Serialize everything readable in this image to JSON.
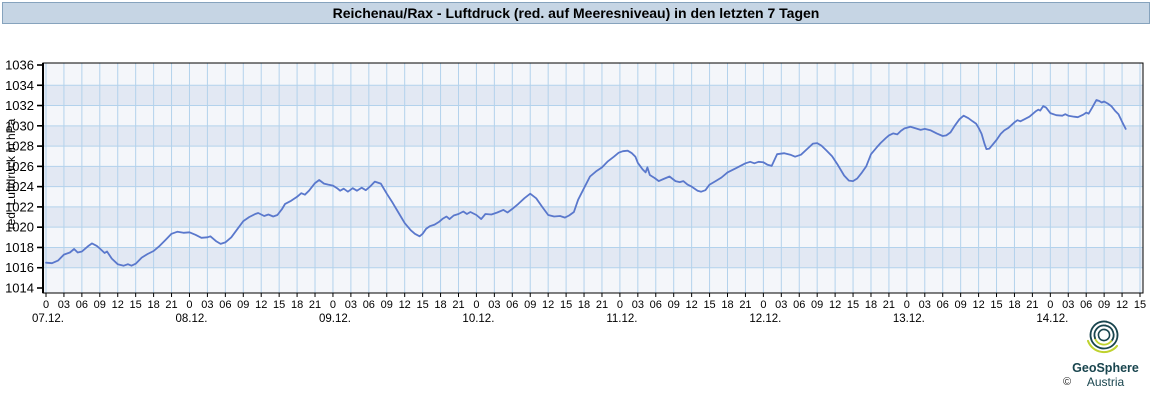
{
  "title_bar": {
    "text": "Reichenau/Rax - Luftdruck (red. auf Meeresniveau) in den letzten 7 Tagen",
    "bg": "#c6d5e4",
    "border": "#86a3bd"
  },
  "chart": {
    "y_axis_label": "red. Luftdruck in hPa",
    "y_ticks": [
      "1014",
      "1016",
      "1018",
      "1020",
      "1022",
      "1024",
      "1026",
      "1028",
      "1030",
      "1032",
      "1034",
      "1036"
    ],
    "hour_label_cycle": [
      "0",
      "03",
      "06",
      "09",
      "12",
      "15",
      "18",
      "21"
    ],
    "date_labels": [
      "07.12.",
      "08.12.",
      "09.12.",
      "10.12.",
      "11.12.",
      "12.12.",
      "13.12.",
      "14.12."
    ],
    "tick_step_hours": 3,
    "colors": {
      "band_light": "#f4f6fa",
      "band_blue": "#e2e8f3",
      "grid": "#b3d2ec",
      "frame": "#000000",
      "line": "#5a78cc",
      "tick_text": "#000000"
    }
  },
  "chart_data": {
    "type": "line",
    "title": "Reichenau/Rax - Luftdruck (red. auf Meeresniveau) in den letzten 7 Tagen",
    "xlabel": "",
    "ylabel": "red. Luftdruck in hPa",
    "x_unit": "hours since 07.12. 00:00",
    "xlim": [
      0,
      183
    ],
    "ylim": [
      1014,
      1036
    ],
    "grid": true,
    "legend": false,
    "series": [
      {
        "name": "red. Luftdruck (hPa)",
        "points": [
          [
            0,
            1016.5
          ],
          [
            1,
            1016.45
          ],
          [
            2,
            1016.7
          ],
          [
            3,
            1017.3
          ],
          [
            4,
            1017.5
          ],
          [
            4.7,
            1017.85
          ],
          [
            5.3,
            1017.5
          ],
          [
            6,
            1017.6
          ],
          [
            7,
            1018.1
          ],
          [
            7.7,
            1018.4
          ],
          [
            8.5,
            1018.15
          ],
          [
            9,
            1017.9
          ],
          [
            9.8,
            1017.45
          ],
          [
            10.2,
            1017.6
          ],
          [
            11,
            1016.9
          ],
          [
            12,
            1016.35
          ],
          [
            13,
            1016.2
          ],
          [
            13.7,
            1016.35
          ],
          [
            14.3,
            1016.2
          ],
          [
            15,
            1016.4
          ],
          [
            16,
            1017
          ],
          [
            17,
            1017.35
          ],
          [
            18,
            1017.65
          ],
          [
            19,
            1018.15
          ],
          [
            20,
            1018.75
          ],
          [
            21,
            1019.35
          ],
          [
            22,
            1019.55
          ],
          [
            23,
            1019.45
          ],
          [
            24,
            1019.5
          ],
          [
            25,
            1019.25
          ],
          [
            26,
            1018.95
          ],
          [
            27,
            1019
          ],
          [
            27.5,
            1019.1
          ],
          [
            28.5,
            1018.6
          ],
          [
            29.2,
            1018.35
          ],
          [
            30,
            1018.5
          ],
          [
            31,
            1019
          ],
          [
            32,
            1019.8
          ],
          [
            33,
            1020.6
          ],
          [
            34,
            1021
          ],
          [
            35,
            1021.3
          ],
          [
            35.5,
            1021.4
          ],
          [
            36.5,
            1021.1
          ],
          [
            37.2,
            1021.25
          ],
          [
            38,
            1021.05
          ],
          [
            38.7,
            1021.2
          ],
          [
            39.5,
            1021.8
          ],
          [
            40,
            1022.3
          ],
          [
            41,
            1022.6
          ],
          [
            42,
            1023
          ],
          [
            42.7,
            1023.35
          ],
          [
            43.3,
            1023.2
          ],
          [
            44,
            1023.6
          ],
          [
            45,
            1024.35
          ],
          [
            45.7,
            1024.65
          ],
          [
            46.5,
            1024.3
          ],
          [
            47.2,
            1024.2
          ],
          [
            48,
            1024.1
          ],
          [
            48.7,
            1023.85
          ],
          [
            49.2,
            1023.6
          ],
          [
            49.8,
            1023.8
          ],
          [
            50.5,
            1023.5
          ],
          [
            51.3,
            1023.85
          ],
          [
            52,
            1023.6
          ],
          [
            52.8,
            1023.9
          ],
          [
            53.5,
            1023.65
          ],
          [
            54.2,
            1024
          ],
          [
            55,
            1024.5
          ],
          [
            56,
            1024.3
          ],
          [
            57,
            1023.3
          ],
          [
            58,
            1022.4
          ],
          [
            59,
            1021.4
          ],
          [
            60,
            1020.4
          ],
          [
            61,
            1019.7
          ],
          [
            61.7,
            1019.35
          ],
          [
            62.5,
            1019.1
          ],
          [
            63,
            1019.35
          ],
          [
            63.6,
            1019.85
          ],
          [
            64.2,
            1020.1
          ],
          [
            65,
            1020.25
          ],
          [
            65.8,
            1020.55
          ],
          [
            66.4,
            1020.85
          ],
          [
            67,
            1021.05
          ],
          [
            67.5,
            1020.8
          ],
          [
            68.2,
            1021.15
          ],
          [
            69,
            1021.3
          ],
          [
            69.8,
            1021.55
          ],
          [
            70.4,
            1021.3
          ],
          [
            71,
            1021.5
          ],
          [
            72,
            1021.2
          ],
          [
            72.8,
            1020.8
          ],
          [
            73.5,
            1021.3
          ],
          [
            74.5,
            1021.25
          ],
          [
            75.5,
            1021.45
          ],
          [
            76.5,
            1021.7
          ],
          [
            77.2,
            1021.45
          ],
          [
            78,
            1021.8
          ],
          [
            79,
            1022.3
          ],
          [
            80,
            1022.85
          ],
          [
            81,
            1023.3
          ],
          [
            82,
            1022.85
          ],
          [
            83,
            1022
          ],
          [
            84,
            1021.2
          ],
          [
            85,
            1021.05
          ],
          [
            86,
            1021.1
          ],
          [
            86.8,
            1020.95
          ],
          [
            87.5,
            1021.15
          ],
          [
            88.3,
            1021.5
          ],
          [
            89,
            1022.7
          ],
          [
            90,
            1023.85
          ],
          [
            91,
            1025
          ],
          [
            92,
            1025.5
          ],
          [
            93,
            1025.9
          ],
          [
            94,
            1026.5
          ],
          [
            95,
            1026.95
          ],
          [
            95.8,
            1027.35
          ],
          [
            96.5,
            1027.5
          ],
          [
            97.3,
            1027.55
          ],
          [
            98,
            1027.3
          ],
          [
            98.6,
            1026.95
          ],
          [
            99,
            1026.35
          ],
          [
            99.8,
            1025.7
          ],
          [
            100.3,
            1025.4
          ],
          [
            100.6,
            1025.9
          ],
          [
            101,
            1025.15
          ],
          [
            101.8,
            1024.85
          ],
          [
            102.5,
            1024.55
          ],
          [
            103.3,
            1024.75
          ],
          [
            104.3,
            1025
          ],
          [
            105.3,
            1024.55
          ],
          [
            106,
            1024.45
          ],
          [
            106.6,
            1024.55
          ],
          [
            107.3,
            1024.2
          ],
          [
            108,
            1024
          ],
          [
            109,
            1023.6
          ],
          [
            109.6,
            1023.5
          ],
          [
            110.3,
            1023.65
          ],
          [
            111,
            1024.2
          ],
          [
            112,
            1024.55
          ],
          [
            113,
            1024.9
          ],
          [
            114,
            1025.4
          ],
          [
            115.5,
            1025.85
          ],
          [
            117,
            1026.3
          ],
          [
            117.8,
            1026.45
          ],
          [
            118.5,
            1026.3
          ],
          [
            119.2,
            1026.45
          ],
          [
            120,
            1026.4
          ],
          [
            120.7,
            1026.15
          ],
          [
            121.4,
            1026.05
          ],
          [
            122.3,
            1027.2
          ],
          [
            123.5,
            1027.3
          ],
          [
            124.5,
            1027.15
          ],
          [
            125.3,
            1026.95
          ],
          [
            126.3,
            1027.15
          ],
          [
            127.3,
            1027.7
          ],
          [
            128.3,
            1028.25
          ],
          [
            129,
            1028.3
          ],
          [
            129.7,
            1028.05
          ],
          [
            130.5,
            1027.6
          ],
          [
            131.5,
            1027
          ],
          [
            132.5,
            1026.1
          ],
          [
            133.5,
            1025.1
          ],
          [
            134.3,
            1024.6
          ],
          [
            135,
            1024.55
          ],
          [
            135.7,
            1024.8
          ],
          [
            136.5,
            1025.4
          ],
          [
            137.2,
            1026
          ],
          [
            138,
            1027.2
          ],
          [
            139,
            1027.9
          ],
          [
            139.6,
            1028.3
          ],
          [
            140.5,
            1028.8
          ],
          [
            141,
            1029.05
          ],
          [
            141.7,
            1029.25
          ],
          [
            142.4,
            1029.15
          ],
          [
            143,
            1029.5
          ],
          [
            143.6,
            1029.75
          ],
          [
            144,
            1029.8
          ],
          [
            144.6,
            1029.9
          ],
          [
            145.5,
            1029.75
          ],
          [
            146.3,
            1029.6
          ],
          [
            147,
            1029.7
          ],
          [
            148,
            1029.55
          ],
          [
            149,
            1029.25
          ],
          [
            150,
            1029
          ],
          [
            150.6,
            1029.05
          ],
          [
            151.3,
            1029.35
          ],
          [
            152,
            1030
          ],
          [
            152.8,
            1030.65
          ],
          [
            153.5,
            1031
          ],
          [
            154.3,
            1030.75
          ],
          [
            155,
            1030.45
          ],
          [
            155.6,
            1030.2
          ],
          [
            156,
            1029.8
          ],
          [
            156.5,
            1029.2
          ],
          [
            157,
            1028.2
          ],
          [
            157.3,
            1027.7
          ],
          [
            157.8,
            1027.75
          ],
          [
            158.3,
            1028.1
          ],
          [
            159,
            1028.6
          ],
          [
            159.7,
            1029.2
          ],
          [
            160.3,
            1029.55
          ],
          [
            161,
            1029.8
          ],
          [
            162,
            1030.35
          ],
          [
            162.5,
            1030.55
          ],
          [
            163,
            1030.45
          ],
          [
            163.7,
            1030.65
          ],
          [
            164.5,
            1030.9
          ],
          [
            165,
            1031.15
          ],
          [
            165.6,
            1031.45
          ],
          [
            166,
            1031.6
          ],
          [
            166.3,
            1031.5
          ],
          [
            166.8,
            1031.95
          ],
          [
            167.3,
            1031.8
          ],
          [
            168,
            1031.25
          ],
          [
            169,
            1031.05
          ],
          [
            170,
            1031
          ],
          [
            170.5,
            1031.15
          ],
          [
            171,
            1031
          ],
          [
            172,
            1030.9
          ],
          [
            172.6,
            1030.85
          ],
          [
            173.5,
            1031.1
          ],
          [
            174,
            1031.3
          ],
          [
            174.4,
            1031.2
          ],
          [
            175,
            1031.8
          ],
          [
            175.7,
            1032.55
          ],
          [
            176.2,
            1032.45
          ],
          [
            176.6,
            1032.3
          ],
          [
            177,
            1032.4
          ],
          [
            177.6,
            1032.2
          ],
          [
            178.2,
            1031.95
          ],
          [
            178.8,
            1031.5
          ],
          [
            179.4,
            1031.15
          ],
          [
            180,
            1030.4
          ],
          [
            180.6,
            1029.7
          ]
        ]
      }
    ]
  },
  "footer": {
    "copyright": "©",
    "brand_line1": "GeoSphere",
    "brand_line2": "Austria",
    "logo": {
      "teal": "#19454e",
      "lime": "#bfd22e"
    }
  }
}
